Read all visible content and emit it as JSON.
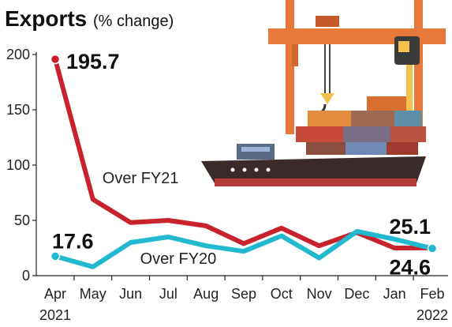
{
  "header": {
    "title": "Exports",
    "subtitle": "(% change)"
  },
  "chart_data": {
    "type": "line",
    "title": "Exports",
    "subtitle": "(% change)",
    "categories": [
      "Apr",
      "May",
      "Jun",
      "Jul",
      "Aug",
      "Sep",
      "Oct",
      "Nov",
      "Dec",
      "Jan",
      "Feb"
    ],
    "x_year_labels": {
      "first": "2021",
      "last": "2022"
    },
    "ylim": [
      0,
      200
    ],
    "y_ticks": [
      0,
      50,
      100,
      150,
      200
    ],
    "series": [
      {
        "name": "Over FY21",
        "color": "#c8232c",
        "values": [
          195.7,
          69,
          48,
          50,
          45,
          29,
          43,
          27,
          39,
          25,
          25.1
        ]
      },
      {
        "name": "Over FY20",
        "color": "#22b8cf",
        "values": [
          17.6,
          8,
          30,
          35,
          27,
          22,
          36,
          16,
          40,
          33,
          24.6
        ]
      }
    ],
    "annotations": {
      "fy21_first": "195.7",
      "fy21_last": "25.1",
      "fy20_first": "17.6",
      "fy20_last": "24.6"
    },
    "grid": false,
    "legend": "inline labels"
  }
}
